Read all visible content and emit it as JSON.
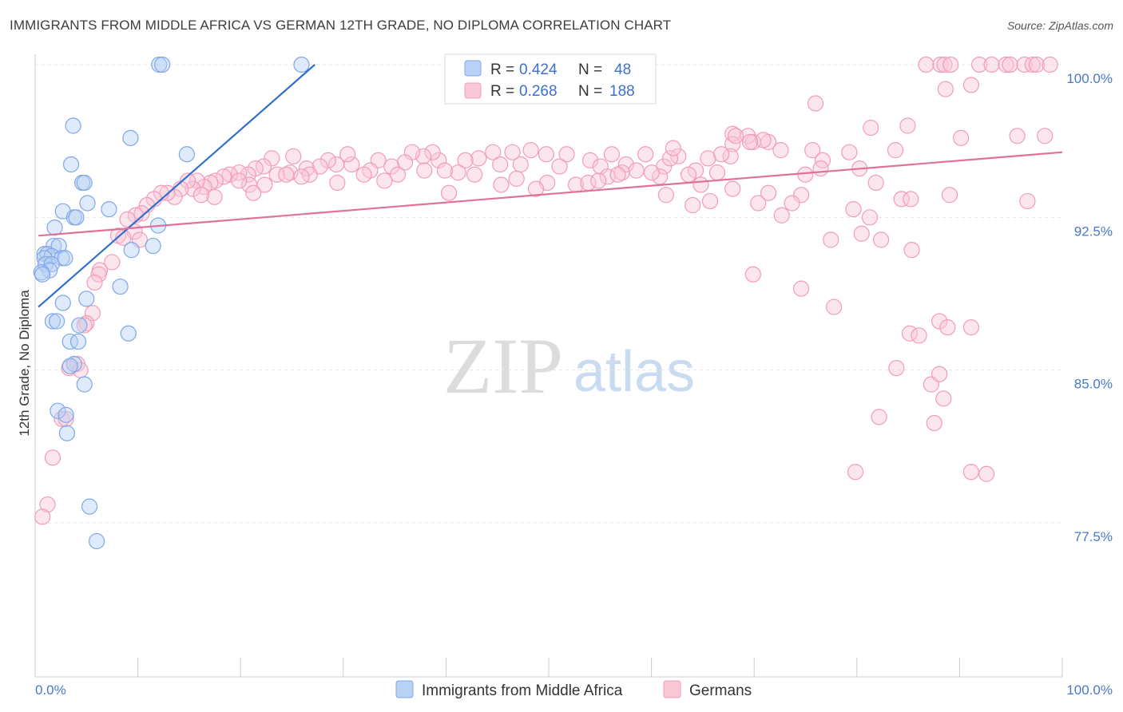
{
  "title": "IMMIGRANTS FROM MIDDLE AFRICA VS GERMAN 12TH GRADE, NO DIPLOMA CORRELATION CHART",
  "source": "Source: ZipAtlas.com",
  "watermark": {
    "zip": "ZIP",
    "atlas": "atlas"
  },
  "colors": {
    "blue": "#7fa7e8",
    "blue_line": "#2f6fd0",
    "pink": "#f29cb8",
    "pink_line": "#e0719b",
    "tick_text": "#4a78c9"
  },
  "legend": {
    "rows": [
      {
        "r_label": "R =",
        "r_value": "0.424",
        "n_label": "N =",
        "n_value": "48"
      },
      {
        "r_label": "R =",
        "r_value": "0.268",
        "n_label": "N =",
        "n_value": "188"
      }
    ]
  },
  "chart_data": {
    "type": "scatter",
    "ylabel": "12th Grade, No Diploma",
    "xlim": [
      0,
      100
    ],
    "ylim": [
      70,
      100.8
    ],
    "x_tick_labels": [
      "0.0%",
      "100.0%"
    ],
    "y_ticks": [
      100.0,
      92.5,
      85.0,
      77.5
    ],
    "y_tick_labels": [
      "100.0%",
      "92.5%",
      "85.0%",
      "77.5%"
    ],
    "grid": true,
    "legend_position": "top-center",
    "series": [
      {
        "name": "Immigrants from Middle Africa",
        "color": "#7fa7e8",
        "trend": {
          "x0": 0.0,
          "y0": 88.1,
          "x1": 27.0,
          "y1": 100.0
        },
        "points": [
          [
            11.8,
            100.0
          ],
          [
            12.1,
            100.0
          ],
          [
            25.7,
            100.0
          ],
          [
            3.4,
            97.0
          ],
          [
            9.0,
            96.4
          ],
          [
            14.5,
            95.6
          ],
          [
            3.2,
            95.1
          ],
          [
            4.3,
            94.2
          ],
          [
            4.5,
            94.2
          ],
          [
            2.4,
            92.8
          ],
          [
            3.5,
            92.5
          ],
          [
            3.7,
            92.5
          ],
          [
            4.8,
            93.2
          ],
          [
            6.9,
            92.9
          ],
          [
            11.7,
            92.1
          ],
          [
            1.6,
            92.0
          ],
          [
            1.5,
            91.1
          ],
          [
            2.0,
            91.1
          ],
          [
            11.2,
            91.1
          ],
          [
            0.6,
            90.7
          ],
          [
            0.9,
            90.7
          ],
          [
            1.3,
            90.6
          ],
          [
            0.6,
            90.5
          ],
          [
            2.3,
            90.5
          ],
          [
            2.6,
            90.5
          ],
          [
            0.7,
            90.2
          ],
          [
            1.3,
            90.2
          ],
          [
            9.1,
            90.9
          ],
          [
            1.1,
            89.9
          ],
          [
            0.3,
            89.8
          ],
          [
            8.0,
            89.1
          ],
          [
            2.4,
            88.3
          ],
          [
            4.7,
            88.5
          ],
          [
            1.4,
            87.4
          ],
          [
            1.8,
            87.4
          ],
          [
            4.0,
            87.2
          ],
          [
            8.8,
            86.8
          ],
          [
            3.1,
            86.4
          ],
          [
            3.9,
            86.4
          ],
          [
            3.5,
            85.3
          ],
          [
            3.1,
            85.2
          ],
          [
            4.5,
            84.3
          ],
          [
            1.9,
            83.0
          ],
          [
            2.7,
            82.8
          ],
          [
            2.8,
            81.9
          ],
          [
            5.0,
            78.3
          ],
          [
            5.7,
            76.6
          ],
          [
            0.4,
            89.7
          ]
        ]
      },
      {
        "name": "Germans",
        "color": "#f29cb8",
        "trend": {
          "x0": 0.0,
          "y0": 91.6,
          "x1": 100.0,
          "y1": 95.7
        },
        "points": [
          [
            86.7,
            100.0
          ],
          [
            88.1,
            100.0
          ],
          [
            88.5,
            100.0
          ],
          [
            89.1,
            100.0
          ],
          [
            91.9,
            100.0
          ],
          [
            93.1,
            100.0
          ],
          [
            94.5,
            100.0
          ],
          [
            94.9,
            100.0
          ],
          [
            96.3,
            100.0
          ],
          [
            97.1,
            100.0
          ],
          [
            97.5,
            100.0
          ],
          [
            98.8,
            100.0
          ],
          [
            88.6,
            98.8
          ],
          [
            91.1,
            99.0
          ],
          [
            75.9,
            98.1
          ],
          [
            81.3,
            96.9
          ],
          [
            84.9,
            97.0
          ],
          [
            95.6,
            96.5
          ],
          [
            90.1,
            96.4
          ],
          [
            69.3,
            96.5
          ],
          [
            67.8,
            96.6
          ],
          [
            67.8,
            96.1
          ],
          [
            71.3,
            96.2
          ],
          [
            69.8,
            96.2
          ],
          [
            70.8,
            96.3
          ],
          [
            72.5,
            95.8
          ],
          [
            75.6,
            95.8
          ],
          [
            76.6,
            95.3
          ],
          [
            79.2,
            95.7
          ],
          [
            83.7,
            95.8
          ],
          [
            84.3,
            93.4
          ],
          [
            81.8,
            94.2
          ],
          [
            80.2,
            94.9
          ],
          [
            67.6,
            95.5
          ],
          [
            65.4,
            95.4
          ],
          [
            64.2,
            94.8
          ],
          [
            62.5,
            95.5
          ],
          [
            61.1,
            95.0
          ],
          [
            59.3,
            95.6
          ],
          [
            56.0,
            95.6
          ],
          [
            57.4,
            95.1
          ],
          [
            53.9,
            95.3
          ],
          [
            54.9,
            95.0
          ],
          [
            51.6,
            95.6
          ],
          [
            50.9,
            95.0
          ],
          [
            49.6,
            95.6
          ],
          [
            48.1,
            95.8
          ],
          [
            47.1,
            95.1
          ],
          [
            46.3,
            95.7
          ],
          [
            44.4,
            95.7
          ],
          [
            45.1,
            95.1
          ],
          [
            43.0,
            95.4
          ],
          [
            41.7,
            95.3
          ],
          [
            41.0,
            94.7
          ],
          [
            39.1,
            95.3
          ],
          [
            38.5,
            95.7
          ],
          [
            37.6,
            95.5
          ],
          [
            36.5,
            95.7
          ],
          [
            35.8,
            95.2
          ],
          [
            34.5,
            95.0
          ],
          [
            33.2,
            95.3
          ],
          [
            32.4,
            94.8
          ],
          [
            30.6,
            95.1
          ],
          [
            30.2,
            95.6
          ],
          [
            29.1,
            95.1
          ],
          [
            28.3,
            95.3
          ],
          [
            27.5,
            95.0
          ],
          [
            26.2,
            94.9
          ],
          [
            24.9,
            95.5
          ],
          [
            24.6,
            94.7
          ],
          [
            23.3,
            94.6
          ],
          [
            22.8,
            95.4
          ],
          [
            22.0,
            95.0
          ],
          [
            21.2,
            94.9
          ],
          [
            20.5,
            94.6
          ],
          [
            19.6,
            94.7
          ],
          [
            18.7,
            94.6
          ],
          [
            18.1,
            94.5
          ],
          [
            17.3,
            94.3
          ],
          [
            16.8,
            94.2
          ],
          [
            16.2,
            94.0
          ],
          [
            15.5,
            94.3
          ],
          [
            15.1,
            93.9
          ],
          [
            14.6,
            94.3
          ],
          [
            13.9,
            93.9
          ],
          [
            13.3,
            93.5
          ],
          [
            12.6,
            93.7
          ],
          [
            12.0,
            93.7
          ],
          [
            11.3,
            93.4
          ],
          [
            10.6,
            93.1
          ],
          [
            10.1,
            92.7
          ],
          [
            9.5,
            92.6
          ],
          [
            8.7,
            92.4
          ],
          [
            9.4,
            91.8
          ],
          [
            7.8,
            91.6
          ],
          [
            8.3,
            91.5
          ],
          [
            9.9,
            91.4
          ],
          [
            7.2,
            90.3
          ],
          [
            6.0,
            89.9
          ],
          [
            5.9,
            89.7
          ],
          [
            5.5,
            89.3
          ],
          [
            5.3,
            87.8
          ],
          [
            4.7,
            87.3
          ],
          [
            4.5,
            87.2
          ],
          [
            3.8,
            85.3
          ],
          [
            4.1,
            85.0
          ],
          [
            3.0,
            85.1
          ],
          [
            2.3,
            82.6
          ],
          [
            2.7,
            82.6
          ],
          [
            1.4,
            80.7
          ],
          [
            0.9,
            78.4
          ],
          [
            0.4,
            77.8
          ],
          [
            55.6,
            94.5
          ],
          [
            58.4,
            94.8
          ],
          [
            52.5,
            94.1
          ],
          [
            53.7,
            94.2
          ],
          [
            49.7,
            94.2
          ],
          [
            48.6,
            93.9
          ],
          [
            46.7,
            94.4
          ],
          [
            42.6,
            94.6
          ],
          [
            45.2,
            94.1
          ],
          [
            37.7,
            94.8
          ],
          [
            39.7,
            94.8
          ],
          [
            40.1,
            93.7
          ],
          [
            35.1,
            94.6
          ],
          [
            33.8,
            94.3
          ],
          [
            31.8,
            94.6
          ],
          [
            29.2,
            94.2
          ],
          [
            26.5,
            94.6
          ],
          [
            25.7,
            94.5
          ],
          [
            24.2,
            94.6
          ],
          [
            22.1,
            94.1
          ],
          [
            20.6,
            94.1
          ],
          [
            19.6,
            94.3
          ],
          [
            21.0,
            93.7
          ],
          [
            17.2,
            93.5
          ],
          [
            15.9,
            93.6
          ],
          [
            61.3,
            93.6
          ],
          [
            63.5,
            94.6
          ],
          [
            64.7,
            94.1
          ],
          [
            66.3,
            94.7
          ],
          [
            67.8,
            93.9
          ],
          [
            70.3,
            93.2
          ],
          [
            72.6,
            92.6
          ],
          [
            74.5,
            93.6
          ],
          [
            73.6,
            93.2
          ],
          [
            76.4,
            94.9
          ],
          [
            79.6,
            92.9
          ],
          [
            81.2,
            92.5
          ],
          [
            85.2,
            93.4
          ],
          [
            96.6,
            93.3
          ],
          [
            69.8,
            89.7
          ],
          [
            63.9,
            93.1
          ],
          [
            60.7,
            94.5
          ],
          [
            59.9,
            94.7
          ],
          [
            57.0,
            94.7
          ],
          [
            54.7,
            94.3
          ],
          [
            56.6,
            94.6
          ],
          [
            65.6,
            93.3
          ],
          [
            74.5,
            89.0
          ],
          [
            71.3,
            93.7
          ],
          [
            74.9,
            94.6
          ],
          [
            77.4,
            91.4
          ],
          [
            80.4,
            91.7
          ],
          [
            82.3,
            91.4
          ],
          [
            85.3,
            90.9
          ],
          [
            77.7,
            88.1
          ],
          [
            83.8,
            85.1
          ],
          [
            82.1,
            82.7
          ],
          [
            85.1,
            86.8
          ],
          [
            86.0,
            86.7
          ],
          [
            88.0,
            87.4
          ],
          [
            87.2,
            84.3
          ],
          [
            88.4,
            83.6
          ],
          [
            87.5,
            82.4
          ],
          [
            88.8,
            87.1
          ],
          [
            91.1,
            87.1
          ],
          [
            91.1,
            80.0
          ],
          [
            92.6,
            79.9
          ],
          [
            88.0,
            84.8
          ],
          [
            89.0,
            93.6
          ],
          [
            98.3,
            96.5
          ],
          [
            79.8,
            80.0
          ],
          [
            69.5,
            96.2
          ],
          [
            66.7,
            95.6
          ],
          [
            68.1,
            96.5
          ],
          [
            61.7,
            95.4
          ],
          [
            62.0,
            95.9
          ]
        ]
      }
    ]
  },
  "bottom_legend": [
    "Immigrants from Middle Africa",
    "Germans"
  ]
}
